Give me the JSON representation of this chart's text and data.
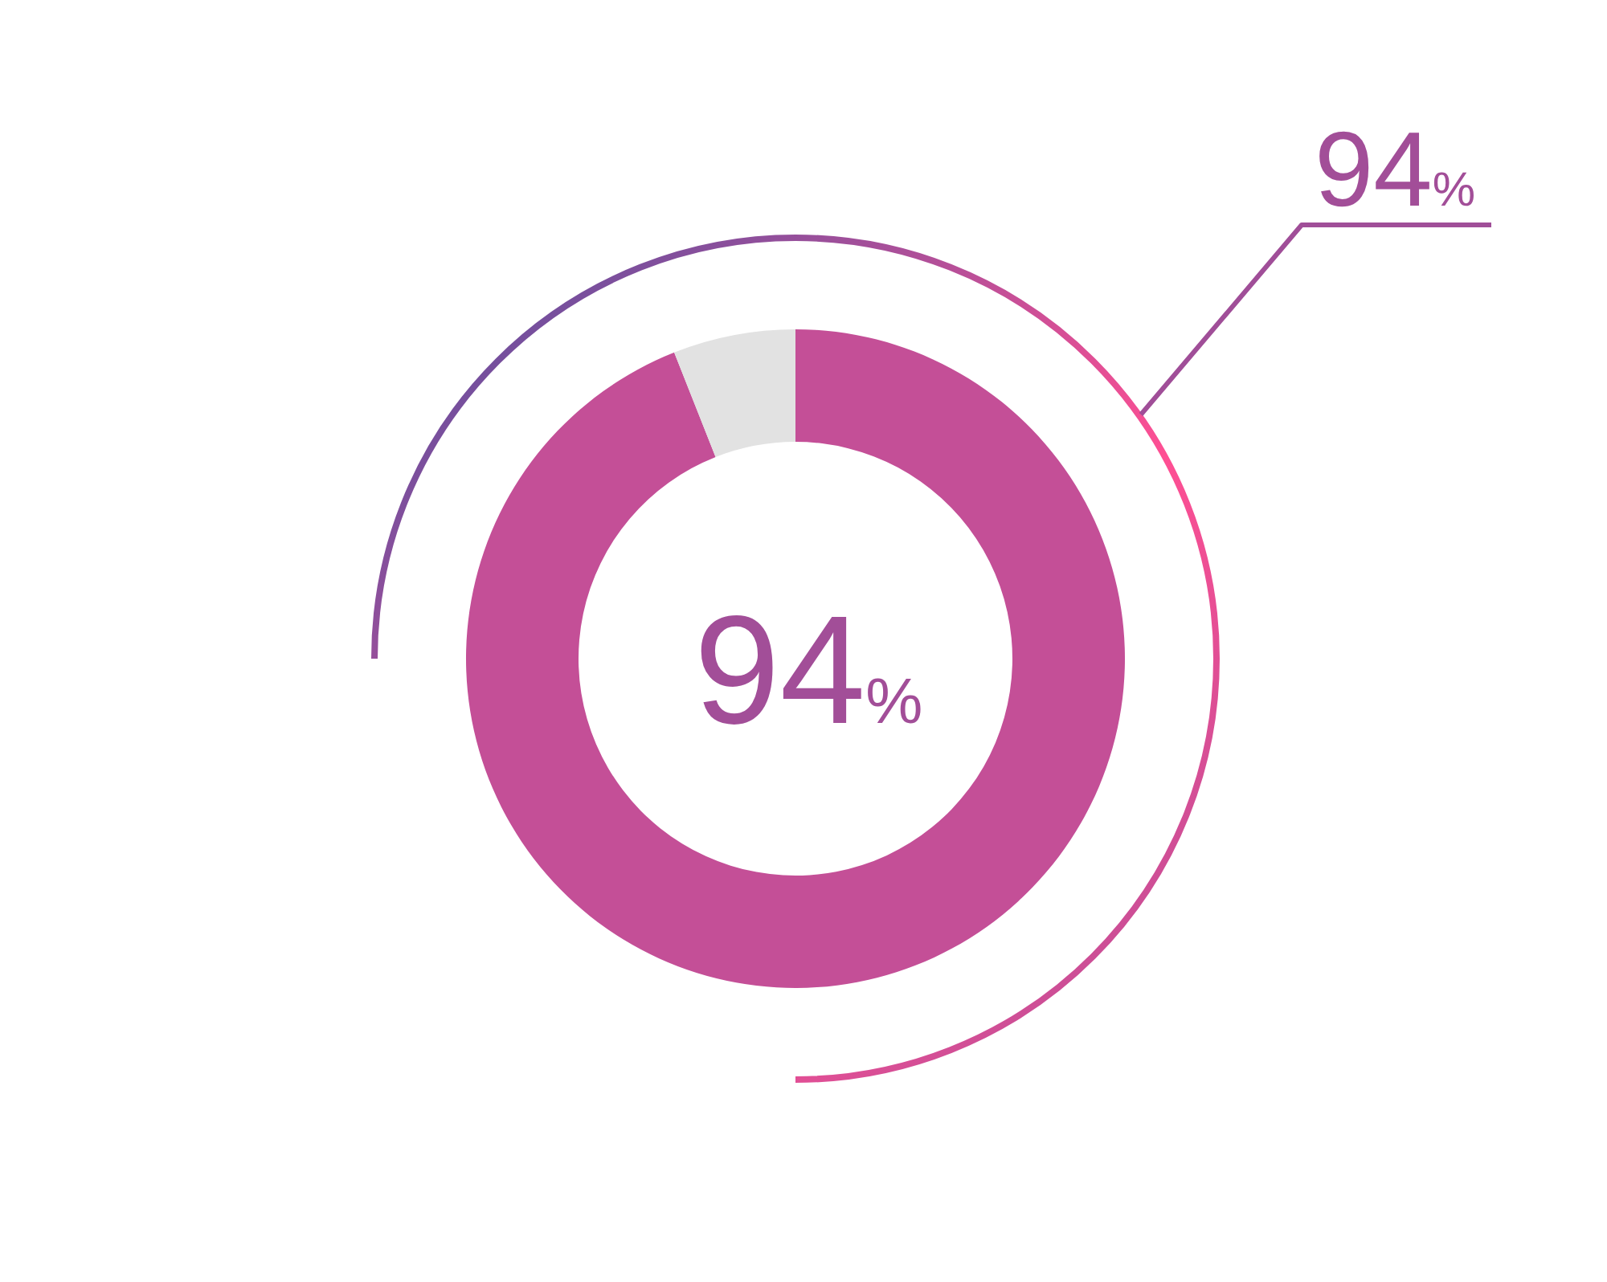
{
  "chart_data": {
    "type": "donut",
    "categories": [
      null,
      null
    ],
    "values": [
      94,
      6
    ],
    "colors": [
      "#c44f97",
      "#e2e2e2"
    ],
    "value_labels": [
      "94%",
      null
    ],
    "annotations": [
      "94%"
    ],
    "legend": false
  }
}
